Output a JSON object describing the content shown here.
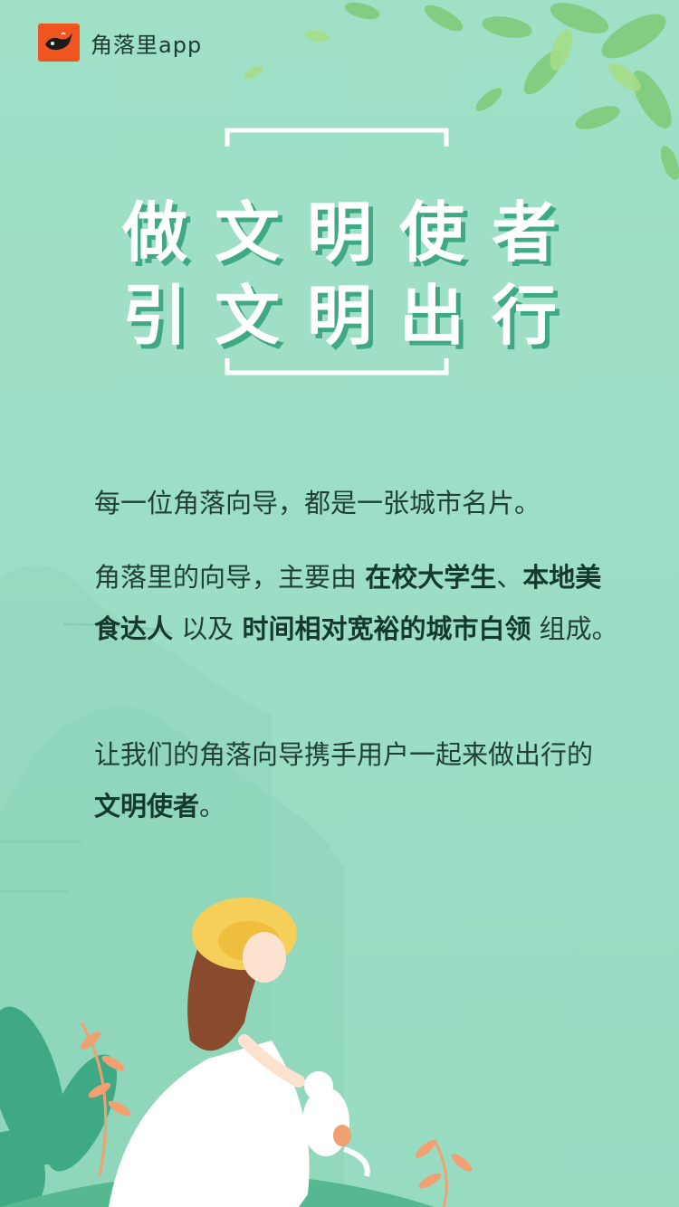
{
  "brand": {
    "name": "角落里app",
    "logo_icon": "whale-icon"
  },
  "title": {
    "line1": "做文明使者",
    "line2": "引文明出行"
  },
  "para1": {
    "text": "每一位角落向导，都是一张城市名片。"
  },
  "para2": {
    "t1": "角落里的向导，主要由 ",
    "h1": "在校大学生",
    "t2": "、",
    "h2": "本地美食达人",
    "t3": " 以及 ",
    "h3": "时间相对宽裕的城市白领",
    "t4": " 组成。"
  },
  "para3": {
    "t1": "让我们的角落向导携手用户一起来做出行的",
    "h1": "文明使者",
    "t2": "。"
  },
  "colors": {
    "background": "#9ddfc6",
    "title_shadow": "#3fa884",
    "brand": "#f0541f",
    "text": "#1f3f37"
  }
}
